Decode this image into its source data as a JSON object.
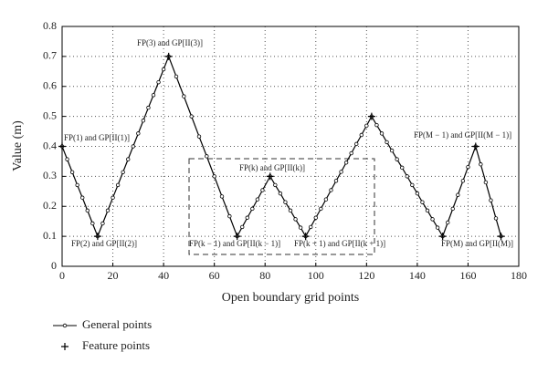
{
  "chart_data": {
    "type": "line",
    "x_label": "Open boundary grid points",
    "y_label": "Value (m)",
    "xlim": [
      0,
      180
    ],
    "xticks": [
      0,
      20,
      40,
      60,
      80,
      100,
      120,
      140,
      160,
      180
    ],
    "ylim": [
      0,
      0.8
    ],
    "yticks": [
      0,
      0.1,
      0.2,
      0.3,
      0.4,
      0.5,
      0.6,
      0.7,
      0.8
    ],
    "grid": true,
    "series": [
      {
        "name": "General points",
        "color": "#000000",
        "marker": "circle",
        "line": true,
        "x": [
          0,
          2,
          4,
          6,
          8,
          10,
          12,
          14,
          16,
          18,
          20,
          22,
          24,
          26,
          28,
          30,
          32,
          34,
          36,
          38,
          40,
          42,
          45,
          48,
          51,
          54,
          57,
          60,
          63,
          66,
          69,
          71,
          73,
          75,
          77,
          79,
          82,
          84,
          86,
          88,
          90,
          92,
          94,
          96,
          98,
          100,
          102,
          104,
          106,
          108,
          110,
          112,
          114,
          116,
          118,
          120,
          122,
          124,
          126,
          128,
          130,
          132,
          134,
          136,
          138,
          140,
          142,
          144,
          146,
          148,
          150,
          152,
          154,
          156,
          158,
          160,
          163,
          165,
          167,
          169,
          171,
          173
        ],
        "values": [
          0.4,
          0.357,
          0.314,
          0.271,
          0.229,
          0.186,
          0.143,
          0.1,
          0.143,
          0.186,
          0.229,
          0.271,
          0.314,
          0.357,
          0.4,
          0.443,
          0.486,
          0.529,
          0.571,
          0.614,
          0.657,
          0.7,
          0.633,
          0.567,
          0.5,
          0.433,
          0.367,
          0.3,
          0.233,
          0.167,
          0.1,
          0.131,
          0.162,
          0.192,
          0.223,
          0.254,
          0.3,
          0.271,
          0.243,
          0.214,
          0.186,
          0.157,
          0.129,
          0.1,
          0.131,
          0.162,
          0.192,
          0.223,
          0.254,
          0.285,
          0.315,
          0.346,
          0.377,
          0.408,
          0.438,
          0.469,
          0.5,
          0.471,
          0.443,
          0.414,
          0.386,
          0.357,
          0.329,
          0.3,
          0.271,
          0.243,
          0.214,
          0.186,
          0.157,
          0.129,
          0.1,
          0.146,
          0.192,
          0.238,
          0.285,
          0.331,
          0.4,
          0.34,
          0.28,
          0.22,
          0.16,
          0.1
        ]
      },
      {
        "name": "Feature points",
        "color": "#000000",
        "marker": "plus",
        "line": false,
        "x": [
          0,
          14,
          42,
          69,
          82,
          96,
          122,
          150,
          163,
          173
        ],
        "values": [
          0.4,
          0.1,
          0.7,
          0.1,
          0.3,
          0.1,
          0.5,
          0.1,
          0.4,
          0.1
        ]
      }
    ],
    "annotations": [
      "FP(1) and GP[II(1)]",
      "FP(2) and GP[II(2)]",
      "FP(3) and GP[II(3)]",
      "FP(k − 1) and GP[II(k − 1)]",
      "FP(k) and GP[II(k)]",
      "FP(k + 1) and GP[II(k + 1)]",
      "FP(M − 1) and GP[II(M − 1)]",
      "FP(M) and GP[II(M)]"
    ]
  }
}
